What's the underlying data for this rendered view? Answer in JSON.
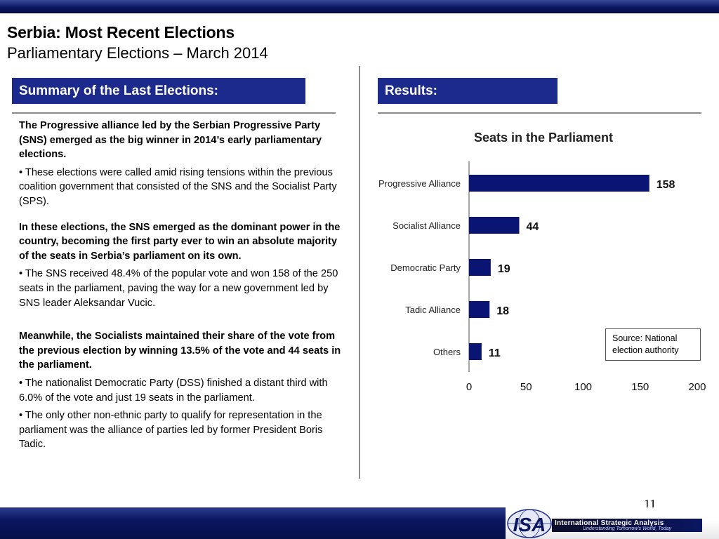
{
  "header": {
    "title": "Serbia: Most Recent Elections",
    "subtitle": "Parliamentary Elections – March 2014"
  },
  "left_panel": {
    "heading": "Summary of the Last Elections:",
    "paragraphs": [
      "The Progressive alliance led by the Serbian Progressive Party (SNS) emerged as the big winner in 2014’s early parliamentary elections.",
      "• These elections were called amid rising tensions within the previous coalition government that consisted of the SNS and the Socialist Party (SPS).",
      "In these elections, the SNS emerged as the dominant power in the country, becoming the first party ever to win an absolute majority of the seats in Serbia’s parliament on its own.",
      "• The SNS received 48.4% of the popular vote and won 158 of the 250 seats in the parliament, paving the way for a new government led by SNS leader Aleksandar Vucic.",
      "Meanwhile, the Socialists maintained their share of the vote from the previous election by winning 13.5% of the vote and 44 seats in the parliament.",
      "• The nationalist Democratic Party (DSS) finished a distant third with 6.0% of the vote and just 19 seats in the parliament.",
      "• The only other non-ethnic party to qualify for representation in the parliament was the alliance of parties led by former President Boris Tadic."
    ]
  },
  "right_panel": {
    "heading": "Results:",
    "source_note": "Source: National election authority"
  },
  "chart_data": {
    "type": "bar",
    "orientation": "horizontal",
    "title": "Seats in the Parliament",
    "categories": [
      "Progressive Alliance",
      "Socialist Alliance",
      "Democratic Party",
      "Tadic Alliance",
      "Others"
    ],
    "values": [
      158,
      44,
      19,
      18,
      11
    ],
    "xlim": [
      0,
      200
    ],
    "xticks": [
      0,
      50,
      100,
      150,
      200
    ],
    "grid": false,
    "data_labels": true,
    "bar_color": "#0a1472"
  },
  "footer": {
    "page_number": "11",
    "logo_text": "ISA",
    "logo_name": "International Strategic Analysis",
    "logo_tagline": "Understanding Tomorrow's World, Today"
  },
  "colors": {
    "brand_navy": "#1b2a8c",
    "bar_navy": "#0a1472"
  }
}
